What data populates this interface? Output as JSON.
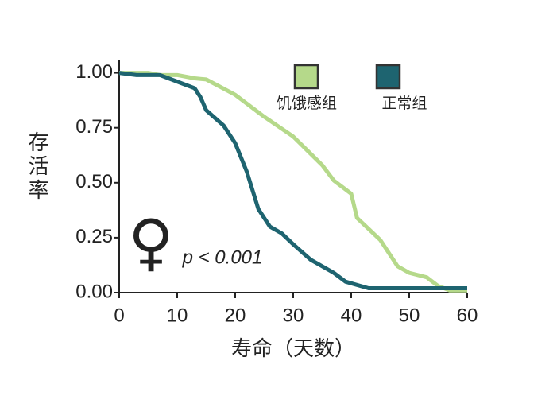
{
  "chart_data": {
    "type": "line",
    "xlabel": "寿命（天数）",
    "ylabel": "存活率",
    "xlim": [
      0,
      60
    ],
    "ylim": [
      0,
      1.06
    ],
    "xticks": [
      0,
      10,
      20,
      30,
      40,
      50,
      60
    ],
    "yticks": [
      {
        "value": 0,
        "label": "0.00"
      },
      {
        "value": 0.25,
        "label": "0.25"
      },
      {
        "value": 0.5,
        "label": "0.50"
      },
      {
        "value": 0.75,
        "label": "0.75"
      },
      {
        "value": 1,
        "label": "1.00"
      }
    ],
    "grid": false,
    "annotations": [
      "♀",
      "p < 0.001"
    ],
    "series": [
      {
        "name": "饥饿感组",
        "color": "#b5d98a",
        "x": [
          0,
          5,
          7,
          10,
          13,
          15,
          20,
          25,
          30,
          35,
          37,
          40,
          41,
          45,
          48,
          50,
          53,
          55,
          57,
          60
        ],
        "values": [
          1.0,
          1.0,
          0.99,
          0.99,
          0.975,
          0.97,
          0.9,
          0.8,
          0.71,
          0.58,
          0.51,
          0.45,
          0.34,
          0.24,
          0.12,
          0.09,
          0.07,
          0.03,
          0.01,
          0.01
        ]
      },
      {
        "name": "正常组",
        "color": "#1e6470",
        "x": [
          0,
          3,
          7,
          10,
          13,
          14,
          15,
          18,
          20,
          22,
          24,
          26,
          28,
          30,
          33,
          37,
          39,
          43,
          55,
          60
        ],
        "values": [
          1.0,
          0.99,
          0.99,
          0.96,
          0.93,
          0.89,
          0.83,
          0.76,
          0.68,
          0.55,
          0.38,
          0.3,
          0.27,
          0.22,
          0.15,
          0.09,
          0.05,
          0.02,
          0.02,
          0.02
        ]
      }
    ]
  }
}
